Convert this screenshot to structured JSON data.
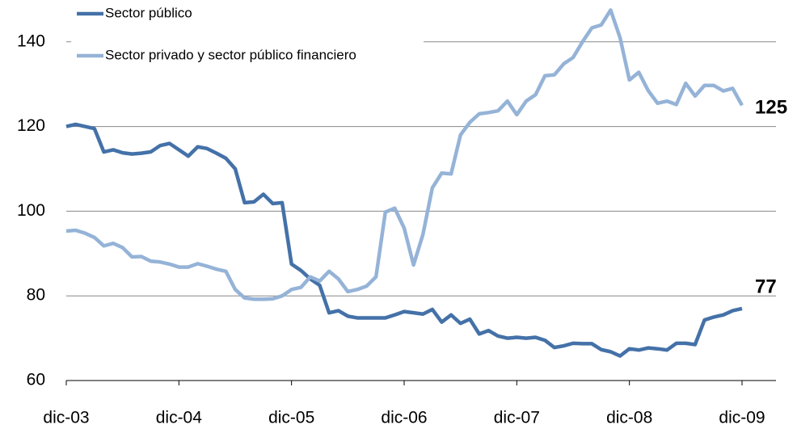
{
  "chart_data": {
    "type": "line",
    "categories": [
      "dic-03",
      null,
      null,
      null,
      null,
      null,
      null,
      null,
      null,
      null,
      null,
      null,
      "dic-04",
      null,
      null,
      null,
      null,
      null,
      null,
      null,
      null,
      null,
      null,
      null,
      "dic-05",
      null,
      null,
      null,
      null,
      null,
      null,
      null,
      null,
      null,
      null,
      null,
      "dic-06",
      null,
      null,
      null,
      null,
      null,
      null,
      null,
      null,
      null,
      null,
      null,
      "dic-07",
      null,
      null,
      null,
      null,
      null,
      null,
      null,
      null,
      null,
      null,
      null,
      "dic-08",
      null,
      null,
      null,
      null,
      null,
      null,
      null,
      null,
      null,
      null,
      null,
      "dic-09"
    ],
    "series": [
      {
        "name": "Sector público",
        "color": "#4471a8",
        "values": [
          120,
          120.5,
          120,
          119.5,
          114,
          114.5,
          113.8,
          113.5,
          113.7,
          114,
          115.5,
          116,
          114.5,
          113,
          115.2,
          114.8,
          113.7,
          112.5,
          110,
          102,
          102.2,
          104,
          101.8,
          102,
          87.5,
          86,
          84,
          82.5,
          76,
          76.5,
          75.2,
          74.8,
          74.8,
          74.8,
          74.8,
          75.5,
          76.3,
          76,
          75.7,
          76.8,
          73.8,
          75.5,
          73.5,
          74.5,
          71,
          71.8,
          70.5,
          70,
          70.2,
          70,
          70.2,
          69.5,
          67.8,
          68.2,
          68.8,
          68.7,
          68.7,
          67.3,
          66.8,
          65.8,
          67.5,
          67.2,
          67.7,
          67.5,
          67.2,
          68.8,
          68.8,
          68.5,
          74.3,
          75,
          75.5,
          76.5,
          77
        ]
      },
      {
        "name": "Sector privado y sector público financiero",
        "color": "#95b3d7",
        "values": [
          95.3,
          95.5,
          94.8,
          93.8,
          91.8,
          92.4,
          91.4,
          89.2,
          89.3,
          88.2,
          88,
          87.5,
          86.8,
          86.8,
          87.6,
          87,
          86.3,
          85.8,
          81.5,
          79.5,
          79.2,
          79.2,
          79.3,
          80,
          81.5,
          82,
          84.5,
          83.5,
          85.8,
          84,
          81,
          81.5,
          82.3,
          84.5,
          99.8,
          100.7,
          96,
          87.3,
          94.5,
          105.5,
          109,
          108.8,
          118,
          121,
          123,
          123.3,
          123.7,
          126,
          122.8,
          126,
          127.5,
          132,
          132.2,
          134.8,
          136.3,
          140,
          143.3,
          144,
          147.5,
          141,
          131,
          132.8,
          128.5,
          125.5,
          126,
          125.2,
          130.2,
          127.2,
          129.7,
          129.7,
          128.4,
          129,
          125
        ]
      }
    ],
    "ylim": [
      60,
      150
    ],
    "yticks": [
      60,
      80,
      100,
      120,
      140
    ],
    "grid": true
  }
}
